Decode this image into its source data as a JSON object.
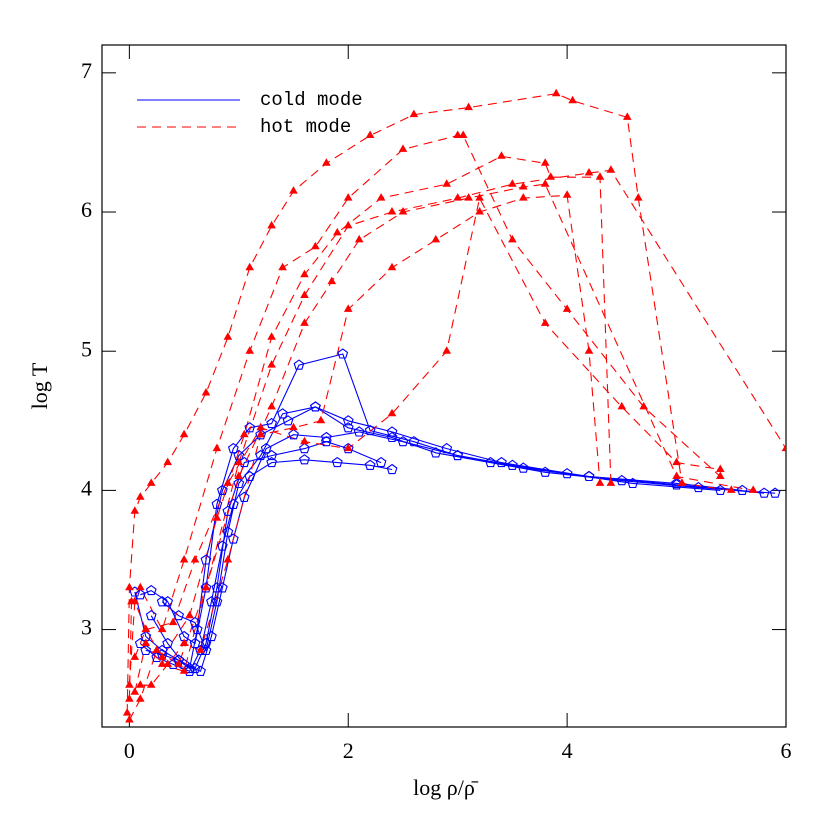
{
  "chart_data": {
    "type": "line",
    "x_label": "log ρ/ρ̄",
    "y_label": "log T",
    "xlim": [
      -0.25,
      6
    ],
    "ylim": [
      2.3,
      7.2
    ],
    "xticks": [
      0,
      2,
      4,
      6
    ],
    "yticks": [
      3,
      4,
      5,
      6,
      7
    ],
    "legend": "upper left",
    "series": [
      {
        "name": "cold mode",
        "color": "#0000ff",
        "dashed": false,
        "marker": "pentagon",
        "tracks": [
          {
            "x": [
              0.05,
              0.15,
              0.3,
              0.45,
              0.55,
              0.62,
              0.7,
              0.85,
              1.0,
              1.2,
              1.45,
              1.7,
              2.0,
              2.4,
              2.8,
              3.3,
              3.8,
              4.5,
              5.2,
              5.9
            ],
            "y": [
              3.27,
              2.95,
              2.85,
              2.78,
              2.72,
              3.0,
              3.5,
              4.0,
              4.25,
              4.4,
              4.5,
              4.6,
              4.45,
              4.38,
              4.27,
              4.2,
              4.13,
              4.07,
              4.02,
              3.98
            ]
          },
          {
            "x": [
              0.1,
              0.2,
              0.35,
              0.5,
              0.6,
              0.7,
              0.8,
              0.95,
              1.1,
              1.3,
              1.55,
              1.95,
              2.2,
              2.6,
              3.0,
              3.5,
              4.0,
              4.6,
              5.4
            ],
            "y": [
              3.25,
              3.28,
              3.2,
              2.95,
              2.9,
              3.3,
              3.9,
              4.3,
              4.45,
              4.48,
              4.9,
              4.98,
              4.43,
              4.35,
              4.25,
              4.18,
              4.12,
              4.05,
              4.0
            ]
          },
          {
            "x": [
              0.1,
              0.25,
              0.4,
              0.55,
              0.65,
              0.75,
              0.85,
              0.95,
              1.1,
              1.3,
              1.6,
              1.9,
              2.2,
              2.4
            ],
            "y": [
              2.9,
              2.8,
              2.75,
              2.7,
              2.85,
              3.2,
              3.6,
              3.9,
              4.1,
              4.2,
              4.22,
              4.2,
              4.18,
              4.15
            ]
          },
          {
            "x": [
              0.15,
              0.3,
              0.45,
              0.6,
              0.7,
              0.8,
              0.9,
              1.05,
              1.3,
              1.6,
              1.8,
              2.0,
              2.3
            ],
            "y": [
              2.85,
              2.82,
              2.78,
              2.72,
              2.9,
              3.3,
              3.85,
              4.2,
              4.25,
              4.3,
              4.35,
              4.3,
              4.2
            ]
          },
          {
            "x": [
              0.2,
              0.35,
              0.5,
              0.65,
              0.75,
              0.85,
              0.95,
              1.05,
              1.25,
              1.5,
              1.8,
              2.1,
              2.5,
              3.0,
              3.6,
              4.2,
              5.0,
              5.8
            ],
            "y": [
              3.1,
              2.9,
              2.75,
              2.7,
              2.95,
              3.3,
              3.65,
              3.95,
              4.3,
              4.4,
              4.38,
              4.42,
              4.35,
              4.25,
              4.16,
              4.1,
              4.04,
              3.98
            ]
          },
          {
            "x": [
              0.3,
              0.45,
              0.6,
              0.7,
              0.8,
              0.9,
              1.0,
              1.2,
              1.4,
              1.7,
              2.0,
              2.4,
              2.9,
              3.4,
              4.2,
              5.0,
              5.6
            ],
            "y": [
              3.2,
              3.1,
              3.05,
              2.85,
              3.2,
              3.7,
              4.05,
              4.25,
              4.55,
              4.6,
              4.5,
              4.42,
              4.3,
              4.2,
              4.1,
              4.05,
              4.0
            ]
          }
        ]
      },
      {
        "name": "hot mode",
        "color": "#ff0000",
        "dashed": true,
        "marker": "triangle",
        "tracks": [
          {
            "x": [
              -0.02,
              0.0,
              0.05,
              0.1,
              0.2,
              0.35,
              0.5,
              0.7,
              0.9,
              1.1,
              1.3,
              1.5,
              1.8,
              2.2,
              2.6,
              3.1,
              3.9,
              4.05,
              4.55,
              4.65,
              5.05,
              5.5
            ],
            "y": [
              2.4,
              3.3,
              3.85,
              3.95,
              4.05,
              4.2,
              4.4,
              4.7,
              5.1,
              5.6,
              5.9,
              6.15,
              6.35,
              6.55,
              6.7,
              6.75,
              6.85,
              6.8,
              6.68,
              6.1,
              4.05,
              4.0
            ]
          },
          {
            "x": [
              0.0,
              0.02,
              0.1,
              0.3,
              0.5,
              0.8,
              1.1,
              1.4,
              1.7,
              2.0,
              2.5,
              3.0,
              3.05,
              3.5,
              4.0,
              4.7,
              5.4
            ],
            "y": [
              2.5,
              3.2,
              3.3,
              3.0,
              3.5,
              4.3,
              5.0,
              5.6,
              5.75,
              6.1,
              6.45,
              6.55,
              6.55,
              5.8,
              5.3,
              4.6,
              4.1
            ]
          },
          {
            "x": [
              0.0,
              0.05,
              0.15,
              0.3,
              0.55,
              0.8,
              1.05,
              1.3,
              1.6,
              1.9,
              2.3,
              2.9,
              3.4,
              3.8,
              3.85,
              4.3,
              4.4
            ],
            "y": [
              2.6,
              3.2,
              3.0,
              2.8,
              3.1,
              3.8,
              4.4,
              5.1,
              5.55,
              5.85,
              6.1,
              6.2,
              6.4,
              6.35,
              6.25,
              6.25,
              4.05
            ]
          },
          {
            "x": [
              0.05,
              0.15,
              0.3,
              0.5,
              0.7,
              1.0,
              1.3,
              1.6,
              2.0,
              2.4,
              3.0,
              3.5,
              4.2,
              4.4,
              6.0
            ],
            "y": [
              2.55,
              2.9,
              2.75,
              2.7,
              3.3,
              4.2,
              4.9,
              5.4,
              5.9,
              6.0,
              6.1,
              6.2,
              6.28,
              6.3,
              4.3
            ]
          },
          {
            "x": [
              0.0,
              0.1,
              0.25,
              0.45,
              0.7,
              1.0,
              1.3,
              1.6,
              1.85,
              2.1,
              2.5,
              3.1,
              3.6,
              3.8,
              5.0,
              5.7
            ],
            "y": [
              2.35,
              2.5,
              2.85,
              2.75,
              3.3,
              4.1,
              4.6,
              5.2,
              5.5,
              5.8,
              6.0,
              6.1,
              6.18,
              6.2,
              4.1,
              4.0
            ]
          },
          {
            "x": [
              0.1,
              0.2,
              0.35,
              0.5,
              0.65,
              0.9,
              1.2,
              1.5,
              1.75,
              2.0,
              2.4,
              2.8,
              3.2,
              3.6,
              4.0,
              4.2,
              4.3
            ],
            "y": [
              2.6,
              2.6,
              2.75,
              2.9,
              2.85,
              3.5,
              4.4,
              4.45,
              4.5,
              5.3,
              5.6,
              5.8,
              6.0,
              6.1,
              6.12,
              5.0,
              4.05
            ]
          },
          {
            "x": [
              0.05,
              0.15,
              0.4,
              0.6,
              0.9,
              1.2,
              1.6,
              2.0,
              2.4,
              2.9,
              3.2,
              3.8,
              4.5,
              5.0,
              5.4
            ],
            "y": [
              2.8,
              3.0,
              3.05,
              3.5,
              4.05,
              4.45,
              4.35,
              4.3,
              4.55,
              5.0,
              6.1,
              5.2,
              4.6,
              4.2,
              4.15
            ]
          }
        ]
      }
    ]
  }
}
